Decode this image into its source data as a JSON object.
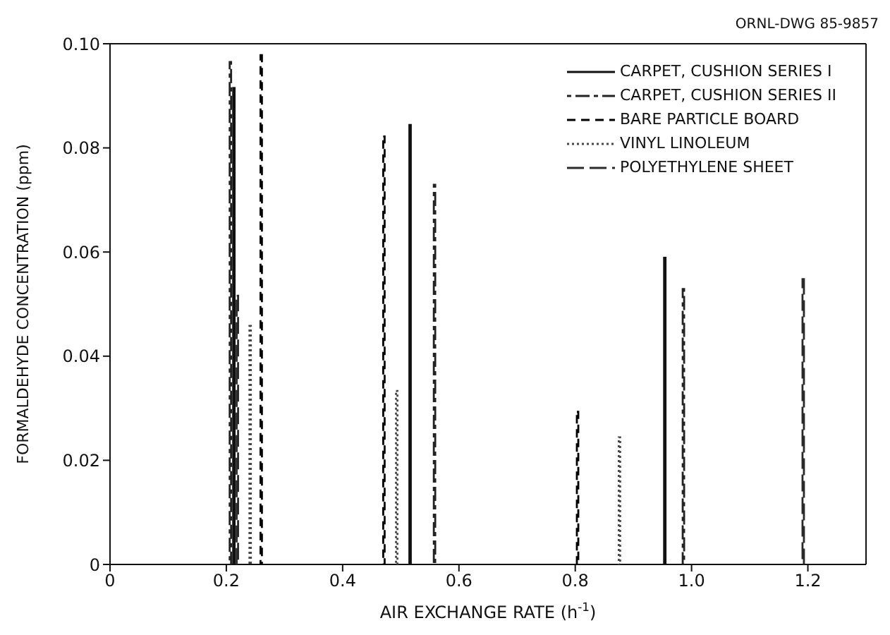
{
  "chart_data": {
    "type": "bar",
    "xlabel": "AIR EXCHANGE RATE (h$^{-1}$)",
    "ylabel": "FORMALDEHYDE CONCENTRATION (ppm)",
    "annotations": [
      "ORNL-DWG 85-9857"
    ],
    "series": [
      {
        "name": "CARPET, CUSHION SERIES I",
        "color": "#111111",
        "line_style": "solid",
        "x": [
          0.213,
          0.516,
          0.954
        ],
        "values": [
          0.0915,
          0.0844,
          0.0589
        ]
      },
      {
        "name": "CARPET, CUSHION SERIES II",
        "color": "#222222",
        "line_style": "dashdot",
        "x": [
          0.207,
          0.558,
          0.986
        ],
        "values": [
          0.0965,
          0.0729,
          0.0529
        ]
      },
      {
        "name": "BARE PARTICLE BOARD",
        "color": "#000000",
        "line_style": "dashed",
        "x": [
          0.26,
          0.471,
          0.804
        ],
        "values": [
          0.0978,
          0.0822,
          0.0293
        ]
      },
      {
        "name": "VINYL LINOLEUM",
        "color": "#484848",
        "line_style": "dotted",
        "x": [
          0.241,
          0.493,
          0.876
        ],
        "values": [
          0.0458,
          0.0333,
          0.0244
        ]
      },
      {
        "name": "POLYETHYLENE SHEET",
        "color": "#2a2a2a",
        "line_style": "longdash",
        "x": [
          0.219,
          1.192
        ],
        "values": [
          0.0516,
          0.0548
        ]
      }
    ],
    "xlim": [
      0,
      1.3
    ],
    "xticks": [
      0,
      0.2,
      0.4,
      0.6,
      0.8,
      {
        "value": 1,
        "label": "1.0"
      },
      1.2
    ],
    "ylim": [
      0,
      0.1
    ],
    "yticks": [
      0,
      {
        "value": 0.02,
        "label": "0.02"
      },
      {
        "value": 0.04,
        "label": "0.04"
      },
      {
        "value": 0.06,
        "label": "0.06"
      },
      {
        "value": 0.08,
        "label": "0.08"
      },
      {
        "value": 0.1,
        "label": "0.10"
      }
    ],
    "grid": false,
    "legend": "top right"
  }
}
